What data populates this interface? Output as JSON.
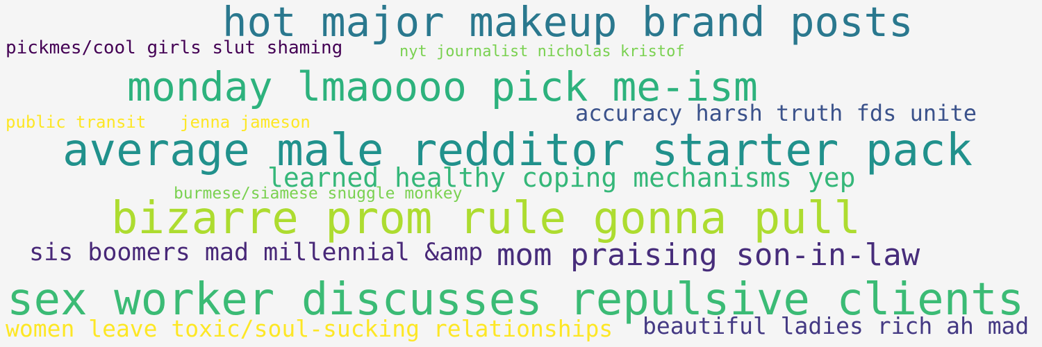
{
  "words": [
    {
      "text": "hot major makeup brand posts",
      "color": "#2a788e"
    },
    {
      "text": "pickmes/cool girls slut shaming",
      "color": "#440154"
    },
    {
      "text": "nyt journalist nicholas kristof",
      "color": "#7ad151"
    },
    {
      "text": "monday lmaoooo pick me-ism",
      "color": "#2db27d"
    },
    {
      "text": "accuracy harsh truth fds unite",
      "color": "#3b528b"
    },
    {
      "text": "public transit",
      "color": "#fde725"
    },
    {
      "text": "jenna jameson",
      "color": "#fde725"
    },
    {
      "text": "average male redditor starter pack",
      "color": "#21918c"
    },
    {
      "text": "learned healthy coping mechanisms yep",
      "color": "#35b779"
    },
    {
      "text": "burmese/siamese snuggle monkey",
      "color": "#7ad151"
    },
    {
      "text": "bizarre prom rule gonna pull",
      "color": "#addc30"
    },
    {
      "text": "sis boomers mad millennial &amp",
      "color": "#482878"
    },
    {
      "text": "mom praising son-in-law",
      "color": "#472d7b"
    },
    {
      "text": "sex worker discusses repulsive clients",
      "color": "#3bbb75"
    },
    {
      "text": "women leave toxic/soul-sucking relationships",
      "color": "#fde725"
    },
    {
      "text": "beautiful ladies rich ah mad",
      "color": "#443983"
    }
  ]
}
